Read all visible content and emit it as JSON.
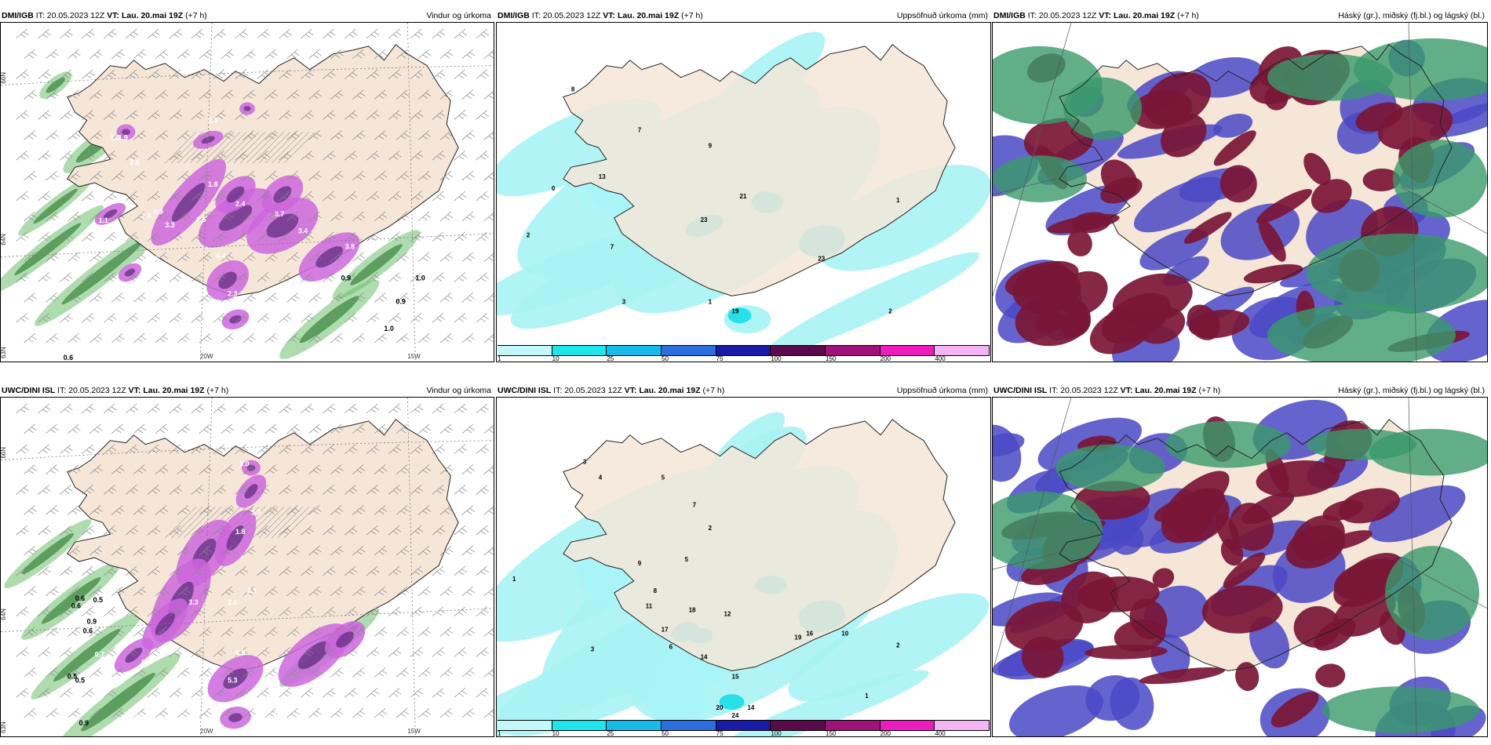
{
  "colors": {
    "land": "#f5e6d8",
    "precip_purple": "#cc66dd",
    "precip_green": "#6bbf6b",
    "precip_cyan": "#a8f3f5",
    "cloud_maroon": "#7a1636",
    "cloud_blue": "#4a48c4",
    "cloud_green": "#3a9a6c"
  },
  "panels": [
    {
      "model": "DMI/IGB",
      "it_label": "IT:",
      "it_value": "20.05.2023 12Z",
      "vt_label": "VT:",
      "vt_value": "Lau. 20.mai 19Z",
      "lead": "(+7 h)",
      "product": "Vindur og úrkoma",
      "kind": "wind"
    },
    {
      "model": "DMI/IGB",
      "it_label": "IT:",
      "it_value": "20.05.2023 12Z",
      "vt_label": "VT:",
      "vt_value": "Lau. 20.mai 19Z",
      "lead": "(+7 h)",
      "product": "Uppsöfnuð úrkoma (mm)",
      "kind": "accum"
    },
    {
      "model": "DMI/IGB",
      "it_label": "IT:",
      "it_value": "20.05.2023 12Z",
      "vt_label": "VT:",
      "vt_value": "Lau. 20.mai 19Z",
      "lead": "(+7 h)",
      "product": "Háský (gr.), miðský (fj.bl.) og lágský (bl.)",
      "kind": "cloud"
    },
    {
      "model": "UWC/DINI ISL",
      "it_label": "IT:",
      "it_value": "20.05.2023 12Z",
      "vt_label": "VT:",
      "vt_value": "Lau. 20.mai 19Z",
      "lead": "(+7 h)",
      "product": "Vindur og úrkoma",
      "kind": "wind"
    },
    {
      "model": "UWC/DINI ISL",
      "it_label": "IT:",
      "it_value": "20.05.2023 12Z",
      "vt_label": "VT:",
      "vt_value": "Lau. 20.mai 19Z",
      "lead": "(+7 h)",
      "product": "Uppsöfnuð úrkoma (mm)",
      "kind": "accum"
    },
    {
      "model": "UWC/DINI ISL",
      "it_label": "IT:",
      "it_value": "20.05.2023 12Z",
      "vt_label": "VT:",
      "vt_value": "Lau. 20.mai 19Z",
      "lead": "(+7 h)",
      "product": "Háský (gr.), miðský (fj.bl.) og lágský (bl.)",
      "kind": "cloud"
    }
  ],
  "axis_labels": {
    "lat_66": "66N",
    "lat_64": "64N",
    "lat_63": "63N",
    "lon_20": "20W",
    "lon_15": "15W"
  },
  "legend": {
    "ticks": [
      "1",
      "10",
      "25",
      "50",
      "75",
      "100",
      "150",
      "200",
      "400"
    ],
    "colors": [
      "#c4f7f9",
      "#1de6ec",
      "#16bce8",
      "#2a6ee0",
      "#1a1aa8",
      "#5a0a4a",
      "#a0127a",
      "#ee1bbf",
      "#f3b4f3"
    ]
  },
  "wind_values": {
    "top": [
      "2.3",
      "1.5",
      "2.0",
      "1.9",
      "1.8",
      "2.4",
      "2.6",
      "3.3",
      "3.7",
      "3.4",
      "3.8",
      "4.4",
      "1.6",
      "2.3",
      "0.9",
      "1.0",
      "1.0",
      "0.8",
      "0.6",
      "1.0",
      "0.9",
      "1.1",
      "0.9"
    ],
    "bottom": [
      "0.8",
      "3.0",
      "3.8",
      "2.1",
      "2.0",
      "3.3",
      "1.8",
      "6.8",
      "5.3",
      "0.6",
      "0.5",
      "0.6",
      "0.9",
      "0.7",
      "0.5",
      "0.9",
      "0.6",
      "0.9",
      "0.5",
      "0.6",
      "1.2",
      "0.9"
    ]
  },
  "accum_values": {
    "top": [
      "8",
      "7",
      "9",
      "13",
      "0",
      "21",
      "23",
      "7",
      "2",
      "1",
      "3",
      "2",
      "1",
      "23",
      "19"
    ],
    "bottom": [
      "3",
      "4",
      "5",
      "7",
      "2",
      "1",
      "9",
      "11",
      "17",
      "18",
      "12",
      "14",
      "15",
      "14",
      "20",
      "24",
      "10",
      "2",
      "1",
      "3",
      "6",
      "8",
      "5",
      "16",
      "19"
    ]
  }
}
